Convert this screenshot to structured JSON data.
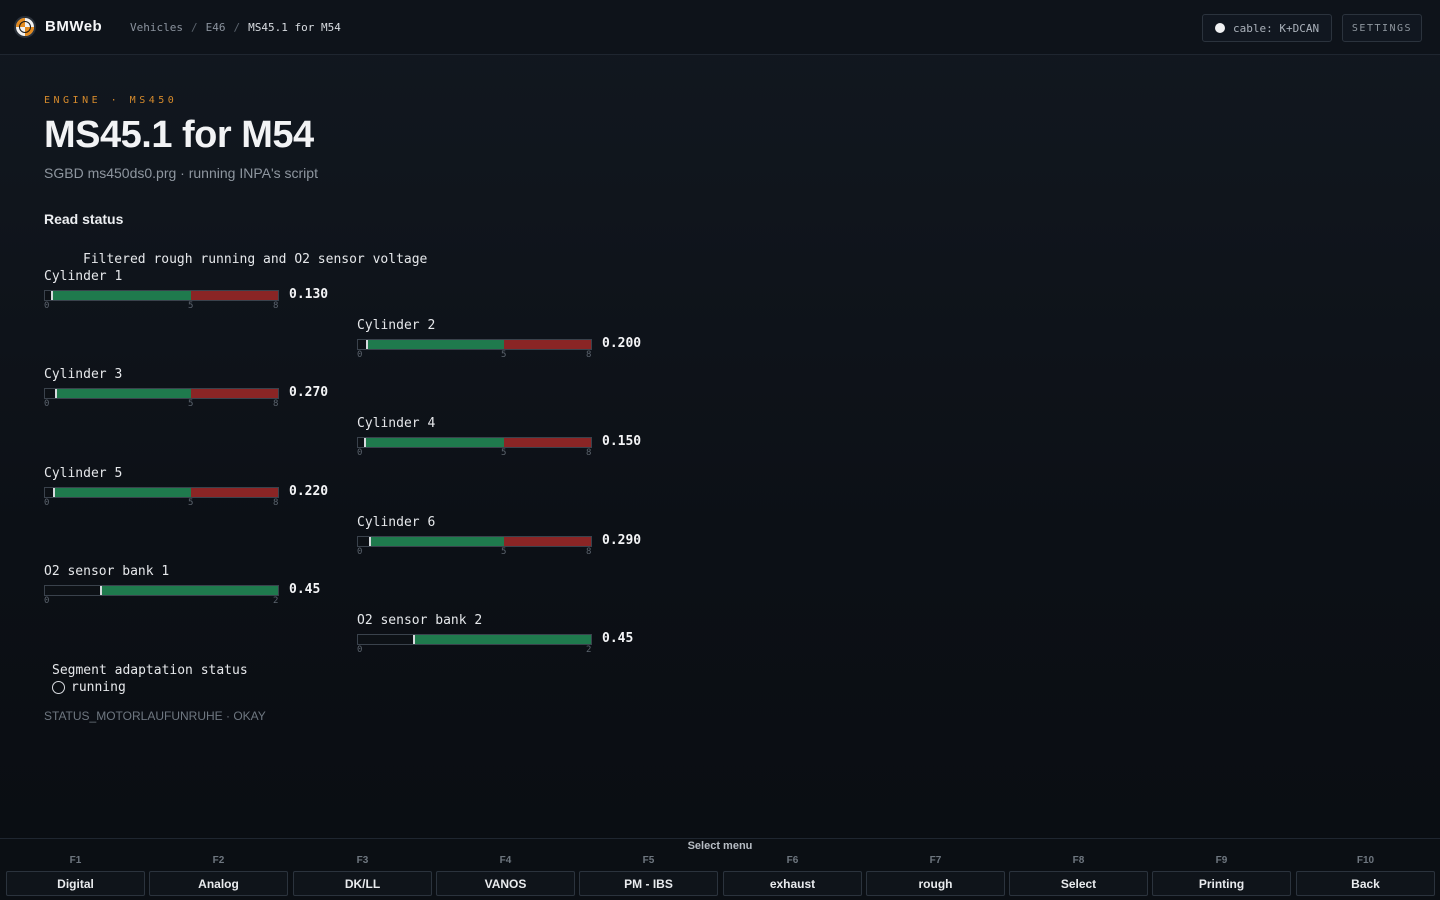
{
  "topbar": {
    "brand": "BMWeb",
    "breadcrumbs": [
      "Vehicles",
      "E46",
      "MS45.1 for M54"
    ],
    "breadcrumb_separator": "/",
    "cable_label": "cable: K+DCAN",
    "settings_label": "SETTINGS"
  },
  "header": {
    "eyebrow": "ENGINE · MS450",
    "title": "MS45.1 for M54",
    "subtitle": "SGBD ms450ds0.prg · running INPA's script",
    "section_title": "Read status"
  },
  "screen": {
    "title": "Filtered rough running and O2 sensor voltage",
    "gauges": [
      {
        "label": "Cylinder 1",
        "value": "0.130",
        "num": 0.13,
        "min": 0,
        "max": 8,
        "mid_tick": 5,
        "ticks": [
          "0",
          "5",
          "8"
        ],
        "green_to": 5
      },
      {
        "label": "Cylinder 2",
        "value": "0.200",
        "num": 0.2,
        "min": 0,
        "max": 8,
        "mid_tick": 5,
        "ticks": [
          "0",
          "5",
          "8"
        ],
        "green_to": 5
      },
      {
        "label": "Cylinder 3",
        "value": "0.270",
        "num": 0.27,
        "min": 0,
        "max": 8,
        "mid_tick": 5,
        "ticks": [
          "0",
          "5",
          "8"
        ],
        "green_to": 5
      },
      {
        "label": "Cylinder 4",
        "value": "0.150",
        "num": 0.15,
        "min": 0,
        "max": 8,
        "mid_tick": 5,
        "ticks": [
          "0",
          "5",
          "8"
        ],
        "green_to": 5
      },
      {
        "label": "Cylinder 5",
        "value": "0.220",
        "num": 0.22,
        "min": 0,
        "max": 8,
        "mid_tick": 5,
        "ticks": [
          "0",
          "5",
          "8"
        ],
        "green_to": 5
      },
      {
        "label": "Cylinder 6",
        "value": "0.290",
        "num": 0.29,
        "min": 0,
        "max": 8,
        "mid_tick": 5,
        "ticks": [
          "0",
          "5",
          "8"
        ],
        "green_to": 5
      },
      {
        "label": "O2 sensor bank 1",
        "value": "0.45",
        "num": 0.45,
        "min": 0,
        "max": 2,
        "ticks": [
          "0",
          "2"
        ],
        "green_to": 2
      },
      {
        "label": "O2 sensor bank 2",
        "value": "0.45",
        "num": 0.45,
        "min": 0,
        "max": 2,
        "ticks": [
          "0",
          "2"
        ],
        "green_to": 2
      }
    ],
    "segment_status_label": "Segment adaptation status",
    "segment_status_value": "running",
    "status_line": "STATUS_MOTORLAUFUNRUHE · OKAY"
  },
  "function_bar": {
    "title": "Select menu",
    "keys": [
      {
        "code": "F1",
        "label": "Digital"
      },
      {
        "code": "F2",
        "label": "Analog"
      },
      {
        "code": "F3",
        "label": "DK/LL"
      },
      {
        "code": "F4",
        "label": "VANOS"
      },
      {
        "code": "F5",
        "label": "PM - IBS"
      },
      {
        "code": "F6",
        "label": "exhaust"
      },
      {
        "code": "F7",
        "label": "rough"
      },
      {
        "code": "F8",
        "label": "Select"
      },
      {
        "code": "F9",
        "label": "Printing"
      },
      {
        "code": "F10",
        "label": "Back"
      }
    ]
  },
  "colors": {
    "accent": "#d58a2c",
    "gauge_green": "#1f7a4d",
    "gauge_red": "#8a2525"
  }
}
